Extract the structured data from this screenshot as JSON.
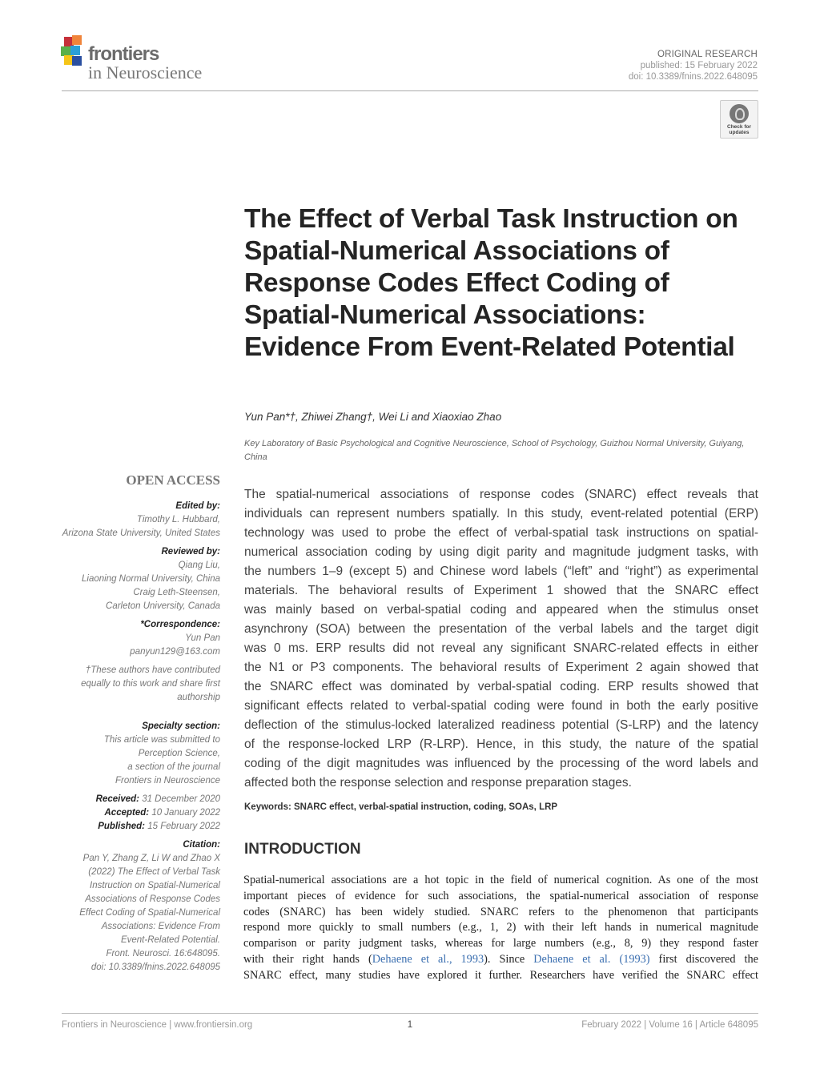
{
  "header": {
    "logo": {
      "word1": "frontiers",
      "word2": "in Neuroscience"
    },
    "article_type": "ORIGINAL RESEARCH",
    "published": "published: 15 February 2022",
    "doi": "doi: 10.3389/fnins.2022.648095",
    "badge": {
      "line1": "Check for",
      "line2": "updates"
    }
  },
  "title": "The Effect of Verbal Task Instruction on Spatial-Numerical Associations of Response Codes Effect Coding of Spatial-Numerical Associations: Evidence From Event-Related Potential",
  "authors": "Yun Pan*†, Zhiwei Zhang†, Wei Li and Xiaoxiao Zhao",
  "affiliation": "Key Laboratory of Basic Psychological and Cognitive Neuroscience, School of Psychology, Guizhou Normal University, Guiyang, China",
  "sidebar": {
    "open_access": "OPEN ACCESS",
    "edited_label": "Edited by:",
    "edited": [
      "Timothy L. Hubbard,",
      "Arizona State University, United States"
    ],
    "reviewed_label": "Reviewed by:",
    "reviewed": [
      "Qiang Liu,",
      "Liaoning Normal University, China",
      "Craig Leth-Steensen,",
      "Carleton University, Canada"
    ],
    "corr_label": "*Correspondence:",
    "corr": [
      "Yun Pan",
      "panyun129@163.com"
    ],
    "equal": [
      "†These authors have contributed",
      "equally to this work and share first",
      "authorship"
    ],
    "specialty_label": "Specialty section:",
    "specialty": [
      "This article was submitted to",
      "Perception Science,",
      "a section of the journal",
      "Frontiers in Neuroscience"
    ],
    "received_label": "Received:",
    "received": "31 December 2020",
    "accepted_label": "Accepted:",
    "accepted": "10 January 2022",
    "published_label": "Published:",
    "published": "15 February 2022",
    "citation_label": "Citation:",
    "citation": [
      "Pan Y, Zhang Z, Li W and Zhao X",
      "(2022) The Effect of Verbal Task",
      "Instruction on Spatial-Numerical",
      "Associations of Response Codes",
      "Effect Coding of Spatial-Numerical",
      "Associations: Evidence From",
      "Event-Related Potential.",
      "Front. Neurosci. 16:648095.",
      "doi: 10.3389/fnins.2022.648095"
    ]
  },
  "abstract": [
    "The spatial-numerical associations of response codes (SNARC) effect reveals that",
    "individuals can represent numbers spatially. In this study, event-related potential (ERP)",
    "technology was used to probe the effect of verbal-spatial task instructions on spatial-",
    "numerical association coding by using digit parity and magnitude judgment tasks, with",
    "the numbers 1–9 (except 5) and Chinese word labels (“left” and “right”) as experimental",
    "materials. The behavioral results of Experiment 1 showed that the SNARC effect",
    "was mainly based on verbal-spatial coding and appeared when the stimulus onset",
    "asynchrony (SOA) between the presentation of the verbal labels and the target digit",
    "was 0 ms. ERP results did not reveal any significant SNARC-related effects in either",
    "the N1 or P3 components. The behavioral results of Experiment 2 again showed that",
    "the SNARC effect was dominated by verbal-spatial coding. ERP results showed that",
    "significant effects related to verbal-spatial coding were found in both the early positive",
    "deflection of the stimulus-locked lateralized readiness potential (S-LRP) and the latency",
    "of the response-locked LRP (R-LRP). Hence, in this study, the nature of the spatial",
    "coding of the digit magnitudes was influenced by the processing of the word labels and",
    "affected both the response selection and response preparation stages."
  ],
  "keywords": "Keywords: SNARC effect, verbal-spatial instruction, coding, SOAs, LRP",
  "intro": {
    "heading": "INTRODUCTION",
    "lines": [
      "Spatial-numerical associations are a hot topic in the field of numerical cognition. As one of the most",
      "important pieces of evidence for such associations, the spatial-numerical association of response",
      "codes (SNARC) has been widely studied. SNARC refers to the phenomenon that participants",
      "respond more quickly to small numbers (e.g., 1, 2) with their left hands in numerical magnitude",
      "comparison or parity judgment tasks, whereas for large numbers (e.g., 8, 9) they respond faster"
    ],
    "line6": {
      "a": "with their right hands (",
      "cite1": "Dehaene et al., 1993",
      "b": "). Since ",
      "cite2": "Dehaene et al. (1993)",
      "c": " first discovered the"
    },
    "line7": "SNARC effect, many studies have explored it further. Researchers have verified the SNARC effect"
  },
  "footer": {
    "left": "Frontiers in Neuroscience | www.frontiersin.org",
    "page": "1",
    "right": "February 2022 | Volume 16 | Article 648095"
  },
  "colors": {
    "link": "#3b6fb0",
    "logo_cubes": [
      "#e8413c",
      "#f28d35",
      "#2aa0d8",
      "#f5c518",
      "#5ab04b",
      "#2a4fa0"
    ]
  }
}
